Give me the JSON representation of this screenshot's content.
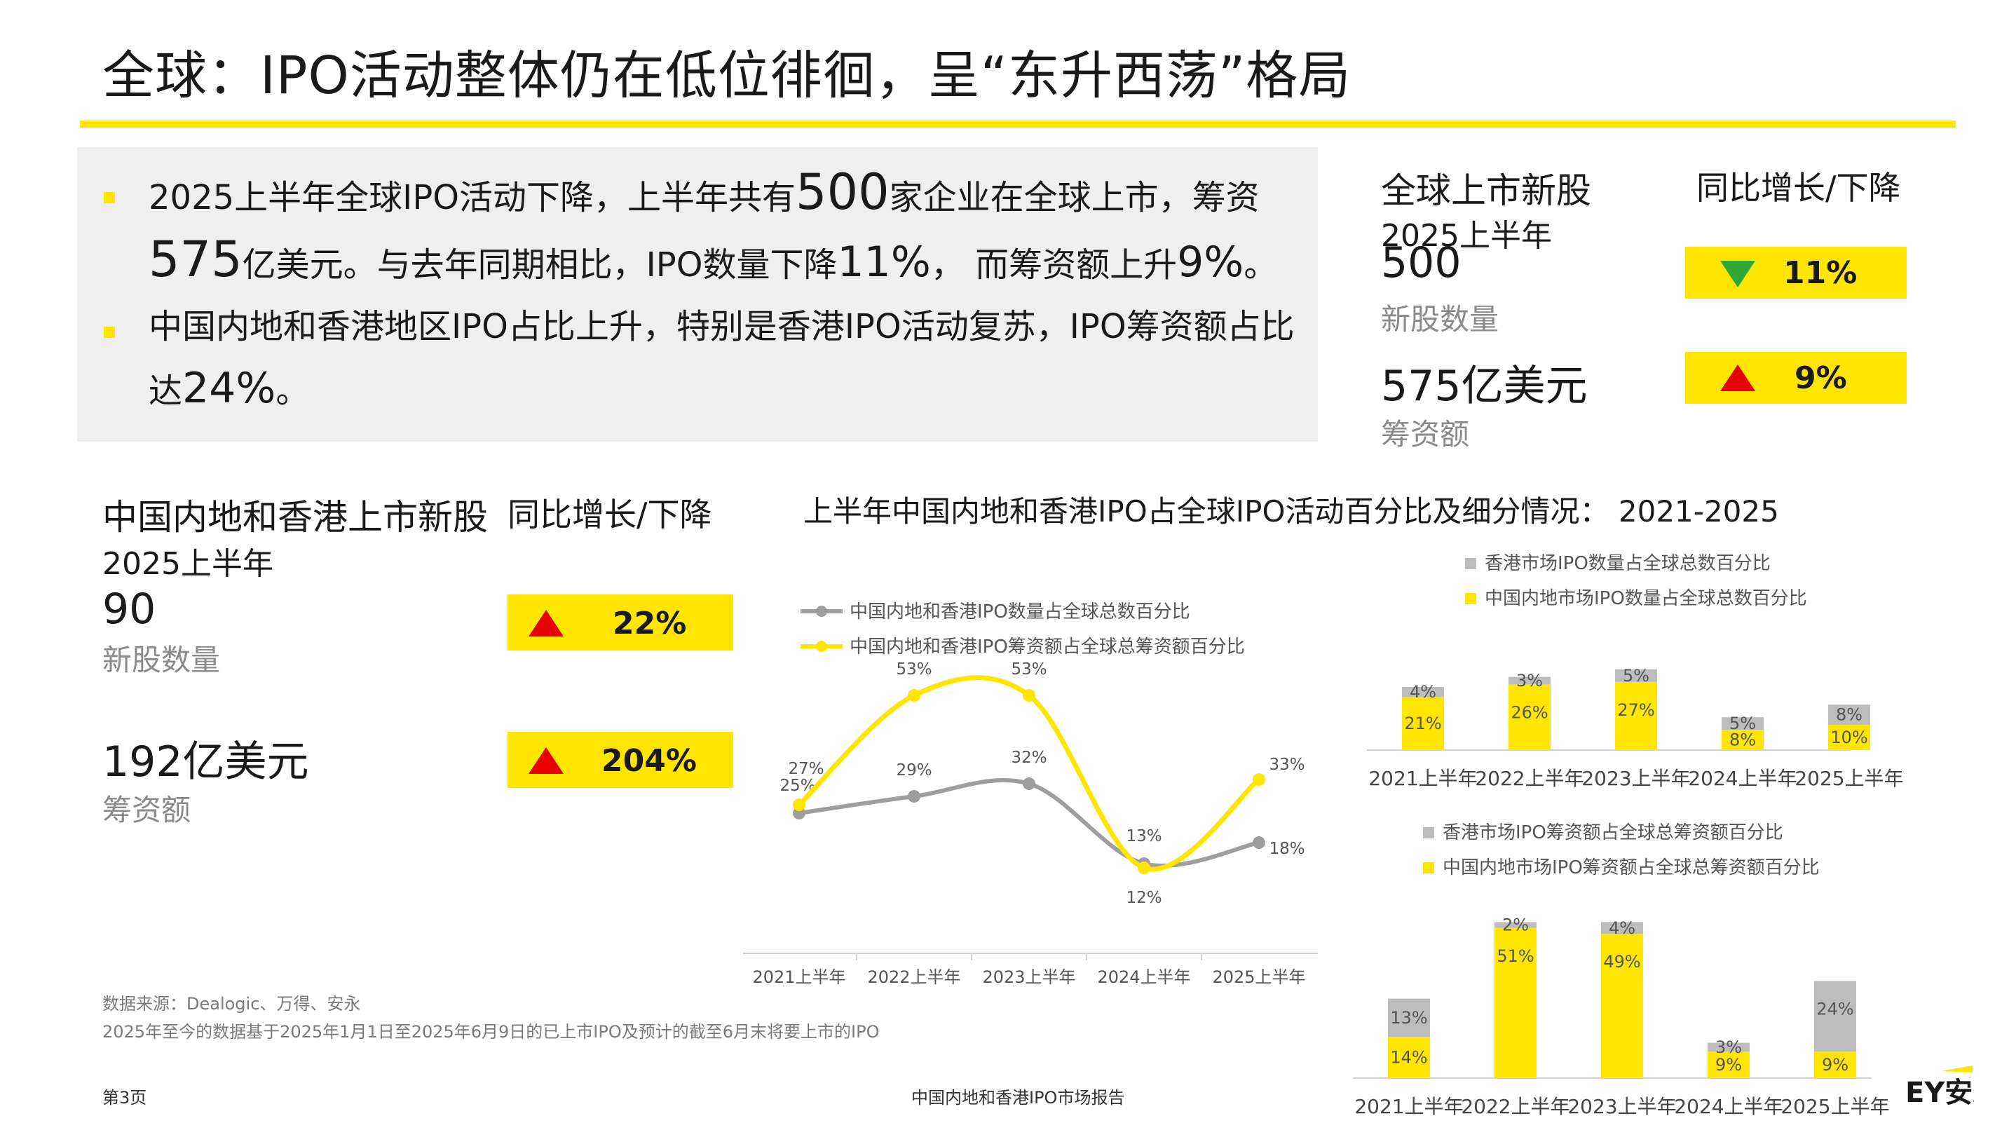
{
  "header": {
    "title": "全球：IPO活动整体仍在低位徘徊，呈“东升西荡”格局"
  },
  "summary": {
    "b1_pre": "2025上半年全球IPO活动下降，上半年共有",
    "b1_num1": "500",
    "b1_mid": "家企业在全球上市，筹资",
    "b1_num2": "575",
    "b1_mid2": "亿美元。与去年同期相比，IPO数量下降",
    "b1_num3": "11%",
    "b1_mid3": "， 而筹资额上升",
    "b1_num4": "9%",
    "b1_end": "。",
    "b2_pre": "中国内地和香港地区IPO占比上升，特别是香港IPO活动复苏，IPO筹资额占比",
    "b2_mid": "达",
    "b2_num": "24%",
    "b2_end": "。"
  },
  "global_stats": {
    "heading": "全球上市新股",
    "yoy_heading": "同比增长/下降",
    "period": "2025上半年",
    "count": "500",
    "count_label": "新股数量",
    "count_yoy": "11%",
    "count_dir": "down",
    "funds": "575亿美元",
    "funds_label": "筹资额",
    "funds_yoy": "9%",
    "funds_dir": "up"
  },
  "china_stats": {
    "heading": "中国内地和香港上市新股",
    "yoy_heading": "同比增长/下降",
    "period": "2025上半年",
    "count": "90",
    "count_label": "新股数量",
    "count_yoy": "22%",
    "funds": "192亿美元",
    "funds_label": "筹资额",
    "funds_yoy": "204%"
  },
  "chart_section": {
    "title": "上半年中国内地和香港IPO占全球IPO活动百分比及细分情况： 2021-2025"
  },
  "chart_data": [
    {
      "type": "line",
      "categories": [
        "2021上半年",
        "2022上半年",
        "2023上半年",
        "2024上半年",
        "2025上半年"
      ],
      "series": [
        {
          "name": "中国内地和香港IPO数量占全球总数百分比",
          "color": "#9e9e9e",
          "values": [
            25,
            29,
            32,
            13,
            18
          ],
          "labels": [
            "25%",
            "29%",
            "32%",
            "13%",
            "18%"
          ]
        },
        {
          "name": "中国内地和香港IPO筹资额占全球总筹资额百分比",
          "color": "#ffe600",
          "values": [
            27,
            53,
            53,
            12,
            33
          ],
          "labels": [
            "27%",
            "53%",
            "53%",
            "12%",
            "33%"
          ]
        }
      ]
    },
    {
      "type": "bar",
      "stacked": true,
      "categories": [
        "2021上半年",
        "2022上半年",
        "2023上半年",
        "2024上半年",
        "2025上半年"
      ],
      "series": [
        {
          "name": "中国内地市场IPO数量占全球总数百分比",
          "color": "#ffe600",
          "values": [
            21,
            26,
            27,
            8,
            10
          ],
          "labels": [
            "21%",
            "26%",
            "27%",
            "8%",
            "10%"
          ]
        },
        {
          "name": "香港市场IPO数量占全球总数百分比",
          "color": "#bdbdbd",
          "values": [
            4,
            3,
            5,
            5,
            8
          ],
          "labels": [
            "4%",
            "3%",
            "5%",
            "5%",
            "8%"
          ]
        }
      ]
    },
    {
      "type": "bar",
      "stacked": true,
      "categories": [
        "2021上半年",
        "2022上半年",
        "2023上半年",
        "2024上半年",
        "2025上半年"
      ],
      "series": [
        {
          "name": "中国内地市场IPO筹资额占全球总筹资额百分比",
          "color": "#ffe600",
          "values": [
            14,
            51,
            49,
            9,
            9
          ],
          "labels": [
            "14%",
            "51%",
            "49%",
            "9%",
            "9%"
          ]
        },
        {
          "name": "香港市场IPO筹资额占全球总筹资额百分比",
          "color": "#bdbdbd",
          "values": [
            13,
            2,
            4,
            3,
            24
          ],
          "labels": [
            "13%",
            "2%",
            "4%",
            "3%",
            "24%"
          ]
        }
      ]
    }
  ],
  "notes": {
    "source": "数据来源：Dealogic、万得、安永",
    "note": "2025年至今的数据基于2025年1月1日至2025年6月9日的已上市IPO及预计的截至6月末将要上市的IPO"
  },
  "footer": {
    "page": "第3页",
    "report": "中国内地和香港IPO市场报告",
    "logo": "EY安永"
  }
}
